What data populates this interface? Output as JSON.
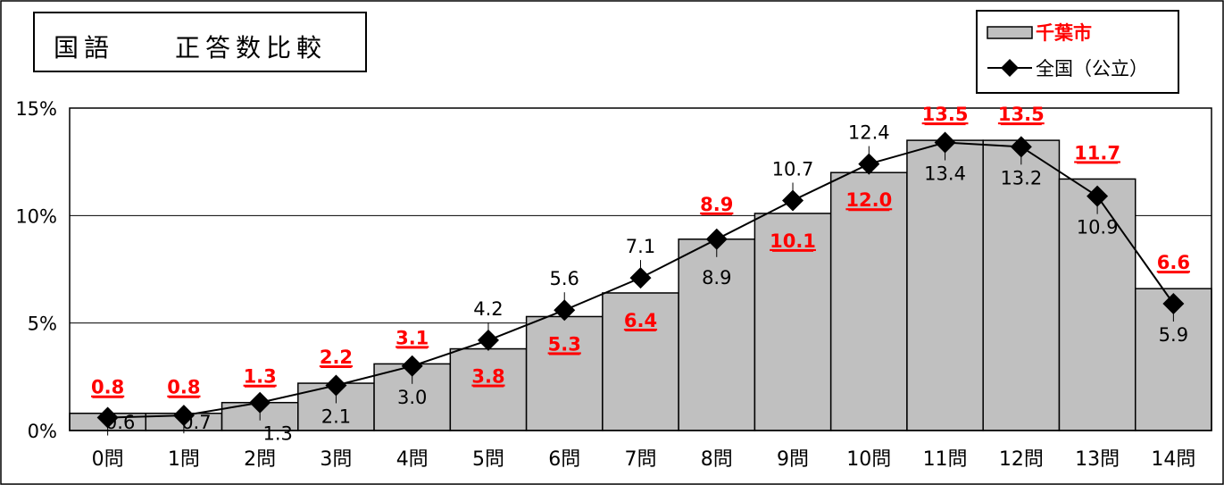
{
  "chart_data": {
    "type": "bar",
    "title": "国語　　正答数比較",
    "categories": [
      "0問",
      "1問",
      "2問",
      "3問",
      "4問",
      "5問",
      "6問",
      "7問",
      "8問",
      "9問",
      "10問",
      "11問",
      "12問",
      "13問",
      "14問"
    ],
    "series": [
      {
        "name": "千葉市",
        "kind": "bar",
        "values": [
          0.8,
          0.8,
          1.3,
          2.2,
          3.1,
          3.8,
          5.3,
          6.4,
          8.9,
          10.1,
          12.0,
          13.5,
          13.5,
          11.7,
          6.6
        ],
        "labels": [
          "0.8",
          "0.8",
          "1.3",
          "2.2",
          "3.1",
          "3.8",
          "5.3",
          "6.4",
          "8.9",
          "10.1",
          "12.0",
          "13.5",
          "13.5",
          "11.7",
          "6.6"
        ]
      },
      {
        "name": "全国（公立）",
        "kind": "line",
        "values": [
          0.6,
          0.7,
          1.3,
          2.1,
          3.0,
          4.2,
          5.6,
          7.1,
          8.9,
          10.7,
          12.4,
          13.4,
          13.2,
          10.9,
          5.9
        ],
        "labels": [
          "0.6",
          "0.7",
          "1.3",
          "2.1",
          "3.0",
          "4.2",
          "5.6",
          "7.1",
          "8.9",
          "10.7",
          "12.4",
          "13.4",
          "13.2",
          "10.9",
          "5.9"
        ]
      }
    ],
    "ylim": [
      0,
      15
    ],
    "yticks": [
      "0%",
      "5%",
      "10%",
      "15%"
    ],
    "grid": true,
    "legend_position": "top-right",
    "colors": {
      "bar_fill": "#c0c0c0",
      "city_label": "#ff0000",
      "national_label": "#000000",
      "line": "#000000"
    }
  }
}
